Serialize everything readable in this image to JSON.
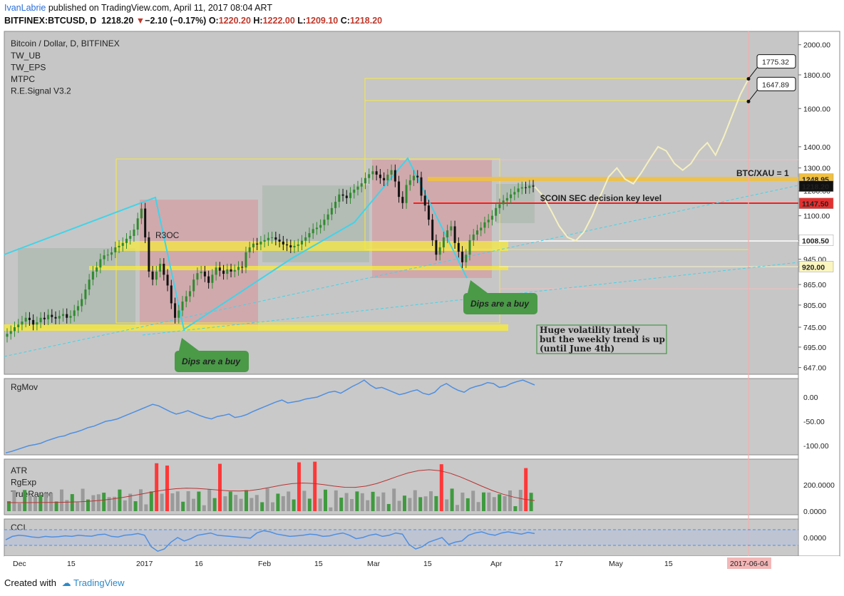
{
  "header": {
    "author": "IvanLabrie",
    "published_text": "published on TradingView.com, April 11, 2017 08:04 ART",
    "symbol_line": "BITFINEX:BTCUSD, D",
    "last_price": "1218.20",
    "change_arrow": "▼",
    "change": "−2.10 (−0.17%)",
    "ohlc": {
      "O_label": "O:",
      "O": "1220.20",
      "H_label": "H:",
      "H": "1222.00",
      "L_label": "L:",
      "L": "1209.10",
      "C_label": "C:",
      "C": "1218.20"
    }
  },
  "footer": {
    "created_with": "Created with",
    "brand": "TradingView"
  },
  "colors": {
    "background": "#c9c9c9",
    "price_pane_bg": "#c6c6c6",
    "candle_up": "#2f8a2f",
    "candle_down": "#111111",
    "resistance_red": "#ff1a1a",
    "highlight_yellow": "#f6e940",
    "trendline_cyan": "#3fd4e8",
    "projection": "#f5f0c0",
    "oscillator_blue": "#4f8fe0",
    "atr_line": "#b83434"
  },
  "chart_data": [
    {
      "type": "candlestick",
      "title": "Bitcoin / Dollar, D, BITFINEX",
      "indicators": [
        "TW_UB",
        "TW_EPS",
        "MTPC",
        "R.E.Signal V3.2"
      ],
      "scale": "log",
      "y_ticks": [
        "2000.00",
        "1800.00",
        "1600.00",
        "1400.00",
        "1300.00",
        "1200.00",
        "1100.00",
        "1008.50",
        "945.00",
        "920.00",
        "865.00",
        "805.00",
        "745.00",
        "695.00",
        "647.00"
      ],
      "x_ticks": [
        "Dec",
        "15",
        "2017",
        "16",
        "Feb",
        "15",
        "Mar",
        "15",
        "Apr",
        "17",
        "May",
        "15",
        "2017-06-04"
      ],
      "price_labels": [
        "1775.32",
        "1647.89",
        "1248.95",
        "1218.20",
        "1147.50",
        "1008.50",
        "920.00"
      ],
      "annotations": [
        "BTC/XAU = 1",
        "$COIN SEC decision key level",
        "Dips are a buy",
        "Dips are a buy",
        "Huge volatility lately",
        "but the weekly trend is up",
        "(until June 4th)",
        "R3OC"
      ],
      "ohlc_last": {
        "open": 1220.2,
        "high": 1222.0,
        "low": 1209.1,
        "close": 1218.2
      },
      "levels": {
        "btc_xau": 1248.95,
        "sec_decision": 1147.5,
        "support_1": 1008.5,
        "support_2": 920.0
      },
      "series": [
        {
          "name": "Close",
          "values": [
            728,
            735,
            745,
            752,
            760,
            770,
            764,
            752,
            758,
            770,
            766,
            778,
            772,
            768,
            775,
            780,
            770,
            775,
            790,
            802,
            822,
            850,
            880,
            905,
            918,
            945,
            958,
            960,
            968,
            985,
            990,
            1000,
            1015,
            1025,
            1048,
            1090,
            1128,
            1020,
            905,
            880,
            905,
            930,
            895,
            862,
            810,
            770,
            790,
            815,
            830,
            845,
            880,
            900,
            905,
            890,
            870,
            895,
            918,
            908,
            898,
            912,
            905,
            910,
            920,
            918,
            968,
            985,
            998,
            995,
            1005,
            1010,
            1018,
            1020,
            1012,
            1005,
            995,
            992,
            985,
            990,
            995,
            1008,
            1020,
            1035,
            1050,
            1055,
            1065,
            1085,
            1105,
            1130,
            1155,
            1185,
            1180,
            1170,
            1192,
            1205,
            1218,
            1232,
            1255,
            1272,
            1285,
            1270,
            1255,
            1245,
            1270,
            1290,
            1240,
            1175,
            1150,
            1225,
            1245,
            1265,
            1258,
            1180,
            1140,
            1085,
            1010,
            960,
            985,
            1020,
            1045,
            1060,
            1000,
            970,
            935,
            960,
            1010,
            1030,
            1045,
            1055,
            1075,
            1085,
            1100,
            1130,
            1145,
            1160,
            1170,
            1185,
            1195,
            1210,
            1215,
            1212,
            1222,
            1218.2
          ]
        },
        {
          "name": "Projection",
          "values": [
            1218,
            1180,
            1120,
            1060,
            1020,
            1008,
            1040,
            1100,
            1180,
            1260,
            1300,
            1250,
            1230,
            1280,
            1340,
            1400,
            1380,
            1320,
            1290,
            1320,
            1380,
            1420,
            1360,
            1450,
            1560,
            1680,
            1775
          ]
        }
      ]
    },
    {
      "type": "line",
      "title": "RgMov",
      "y_ticks": [
        "0.00",
        "-50.00",
        "-100.00"
      ],
      "series": [
        {
          "name": "RgMov",
          "values": [
            -115,
            -112,
            -108,
            -104,
            -100,
            -98,
            -95,
            -90,
            -86,
            -82,
            -80,
            -75,
            -72,
            -68,
            -63,
            -60,
            -55,
            -50,
            -48,
            -45,
            -40,
            -35,
            -30,
            -25,
            -20,
            -15,
            -18,
            -24,
            -30,
            -35,
            -32,
            -28,
            -33,
            -38,
            -42,
            -45,
            -40,
            -38,
            -35,
            -42,
            -40,
            -36,
            -30,
            -25,
            -20,
            -15,
            -10,
            -6,
            -12,
            -10,
            -8,
            -4,
            -2,
            0,
            5,
            10,
            12,
            8,
            15,
            22,
            28,
            35,
            25,
            18,
            20,
            15,
            10,
            5,
            8,
            12,
            15,
            8,
            5,
            10,
            22,
            28,
            20,
            14,
            10,
            18,
            22,
            25,
            30,
            28,
            20,
            22,
            28,
            32,
            35,
            30,
            25
          ]
        }
      ]
    },
    {
      "type": "bar",
      "title": "ATR / RgExp / TrueRange",
      "legend": [
        "ATR",
        "RgExp",
        "TrueRange"
      ],
      "y_ticks": [
        "200.0000",
        "0.0000"
      ]
    },
    {
      "type": "line",
      "title": "CCI",
      "y_ticks": [
        "0.0000"
      ],
      "series": [
        {
          "name": "CCI",
          "values": [
            -20,
            10,
            20,
            15,
            5,
            0,
            10,
            5,
            8,
            15,
            10,
            20,
            15,
            12,
            25,
            30,
            10,
            5,
            20,
            25,
            35,
            20,
            -80,
            -120,
            -100,
            -40,
            0,
            -30,
            -10,
            20,
            30,
            40,
            20,
            15,
            10,
            5,
            0,
            -5,
            40,
            60,
            50,
            30,
            20,
            10,
            15,
            20,
            30,
            25,
            10,
            15,
            30,
            40,
            20,
            -10,
            0,
            20,
            30,
            10,
            20,
            40,
            30,
            -60,
            -100,
            -80,
            -40,
            -20,
            0,
            -60,
            -40,
            -30,
            20,
            40,
            50,
            30,
            20,
            40,
            50,
            40,
            30,
            45,
            35
          ]
        }
      ]
    }
  ]
}
